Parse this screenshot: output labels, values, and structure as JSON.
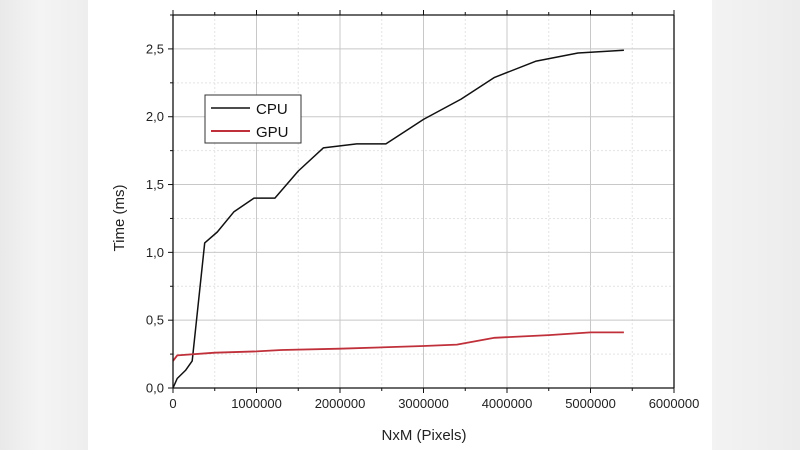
{
  "chart_data": {
    "type": "line",
    "title": "",
    "xlabel": "NxM (Pixels)",
    "ylabel": "Time (ms)",
    "xlim": [
      0,
      6000000
    ],
    "ylim": [
      0,
      2.75
    ],
    "x_ticks": [
      "0",
      "1000000",
      "2000000",
      "3000000",
      "4000000",
      "5000000",
      "6000000"
    ],
    "y_ticks": [
      "0,0",
      "0,5",
      "1,0",
      "1,5",
      "2,0",
      "2,5"
    ],
    "grid": true,
    "legend_position": "upper-left-inside",
    "series": [
      {
        "name": "CPU",
        "color": "#111111",
        "x": [
          0,
          50000,
          150000,
          230000,
          380000,
          530000,
          730000,
          970000,
          1220000,
          1500000,
          1800000,
          2200000,
          2550000,
          3000000,
          3450000,
          3850000,
          4350000,
          4850000,
          5400000
        ],
        "values": [
          0.0,
          0.07,
          0.13,
          0.2,
          1.07,
          1.15,
          1.3,
          1.4,
          1.4,
          1.6,
          1.77,
          1.8,
          1.8,
          1.98,
          2.13,
          2.29,
          2.41,
          2.47,
          2.49
        ]
      },
      {
        "name": "GPU",
        "color": "#c0303a",
        "x": [
          0,
          50000,
          500000,
          1000000,
          1300000,
          2000000,
          3000000,
          3400000,
          3850000,
          4500000,
          5000000,
          5400000
        ],
        "values": [
          0.2,
          0.24,
          0.26,
          0.27,
          0.28,
          0.29,
          0.31,
          0.32,
          0.37,
          0.39,
          0.41,
          0.41
        ]
      }
    ]
  },
  "legend": {
    "items": [
      {
        "label": "CPU"
      },
      {
        "label": "GPU"
      }
    ]
  },
  "axes": {
    "xlabel": "NxM (Pixels)",
    "ylabel": "Time (ms)",
    "x_ticks": [
      "0",
      "1000000",
      "2000000",
      "3000000",
      "4000000",
      "5000000",
      "6000000"
    ],
    "y_ticks": [
      "0,0",
      "0,5",
      "1,0",
      "1,5",
      "2,0",
      "2,5"
    ]
  }
}
